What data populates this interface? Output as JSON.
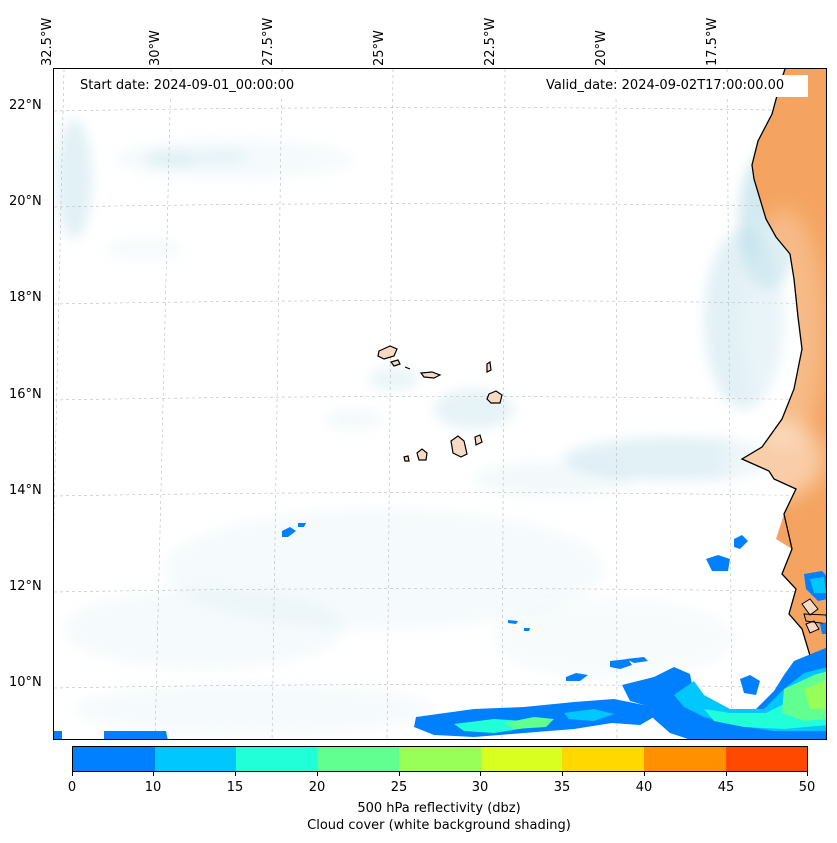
{
  "map": {
    "start_date": "Start date: 2024-09-01_00:00:00",
    "valid_date": "Valid_date: 2024-09-02T17:00:00.00",
    "lon_labels": [
      "32.5°W",
      "30°W",
      "27.5°W",
      "25°W",
      "22.5°W",
      "20°W",
      "17.5°W"
    ],
    "lat_labels": [
      "22°N",
      "20°N",
      "18°N",
      "16°N",
      "14°N",
      "12°N",
      "10°N"
    ],
    "colors": {
      "land": "#f4a460",
      "island_land": "#f8d9c4",
      "cloud": "#add8e6",
      "coastline": "#000000",
      "gridline": "#bbbbbb"
    }
  },
  "colorbar": {
    "ticks": [
      "0",
      "10",
      "15",
      "20",
      "25",
      "30",
      "35",
      "40",
      "45",
      "50"
    ],
    "colors": [
      "#0080ff",
      "#00c8ff",
      "#20ffd8",
      "#60ff90",
      "#98ff58",
      "#d8ff20",
      "#ffd800",
      "#ff9000",
      "#ff4800"
    ],
    "label": "500 hPa reflectivity (dbz)",
    "sublabel": "Cloud cover (white background shading)"
  }
}
